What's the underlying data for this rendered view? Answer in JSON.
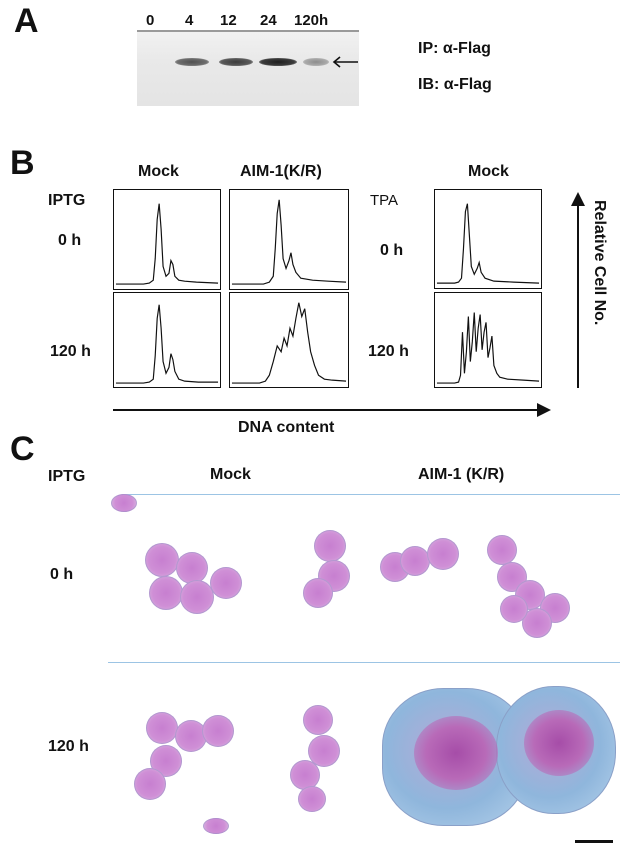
{
  "panel_a": {
    "letter": "A",
    "lanes": [
      "0",
      "4",
      "12",
      "24",
      "120h"
    ],
    "band_intensity": [
      0.0,
      0.75,
      0.85,
      1.0,
      0.45
    ],
    "ip_label": "IP: α-Flag",
    "ib_label": "IB: α-Flag"
  },
  "panel_b": {
    "letter": "B",
    "row_label_left": "IPTG",
    "row_label_right": "TPA",
    "col_mock": "Mock",
    "col_aim": "AIM-1(K/R)",
    "col_mock_right": "Mock",
    "time_0": "0 h",
    "time_120": "120 h",
    "time_0_right": "0 h",
    "time_120_right": "120 h",
    "xaxis": "DNA content",
    "yaxis": "Relative Cell No."
  },
  "panel_c": {
    "letter": "C",
    "row_label": "IPTG",
    "col_mock": "Mock",
    "col_aim": "AIM-1 (K/R)",
    "time_0": "0 h",
    "time_120": "120 h"
  }
}
